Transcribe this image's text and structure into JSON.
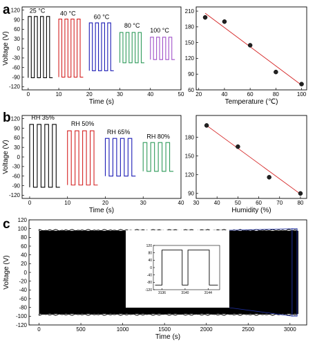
{
  "panels": {
    "a": "a",
    "b": "b",
    "c": "c"
  },
  "colors": {
    "black": "#000000",
    "red": "#d42020",
    "blue": "#1a1ab5",
    "green": "#2e9a5a",
    "purple": "#a050c8",
    "fit": "#d42020",
    "zoom_box": "#2030a0"
  },
  "chart_data": [
    {
      "id": "a-left",
      "type": "line",
      "xlabel": "Time (s)",
      "ylabel": "Voltage (V)",
      "xlim": [
        -2,
        50
      ],
      "ylim": [
        -130,
        130
      ],
      "xticks": [
        0,
        10,
        20,
        30,
        40,
        50
      ],
      "yticks": [
        -120,
        -90,
        -60,
        -30,
        0,
        30,
        60,
        90,
        120
      ],
      "series": [
        {
          "name": "25 °C",
          "label": "25 °C",
          "color": "#000000",
          "x_start": 0,
          "x_end": 8,
          "high": 100,
          "low": -92,
          "pulses": 4
        },
        {
          "name": "40 °C",
          "label": "40 °C",
          "color": "#d42020",
          "x_start": 10,
          "x_end": 18,
          "high": 92,
          "low": -90,
          "pulses": 4
        },
        {
          "name": "60 °C",
          "label": "60 °C",
          "color": "#1a1ab5",
          "x_start": 20,
          "x_end": 28,
          "high": 80,
          "low": -70,
          "pulses": 4
        },
        {
          "name": "80 °C",
          "label": "80 °C",
          "color": "#2e9a5a",
          "x_start": 30,
          "x_end": 38,
          "high": 50,
          "low": -45,
          "pulses": 4
        },
        {
          "name": "100 °C",
          "label": "100 °C",
          "color": "#a050c8",
          "x_start": 40,
          "x_end": 48,
          "high": 35,
          "low": -35,
          "pulses": 4
        }
      ]
    },
    {
      "id": "a-right",
      "type": "scatter",
      "xlabel": "Temperature (℃)",
      "ylabel": "",
      "xlim": [
        18,
        104
      ],
      "ylim": [
        60,
        218
      ],
      "xticks": [
        20,
        40,
        60,
        80,
        100
      ],
      "yticks": [
        60,
        90,
        120,
        150,
        180,
        210
      ],
      "points": {
        "x": [
          25,
          40,
          60,
          80,
          100
        ],
        "y": [
          198,
          190,
          145,
          94,
          71
        ]
      },
      "fit": {
        "x": [
          25,
          100
        ],
        "y": [
          206,
          69
        ]
      }
    },
    {
      "id": "b-left",
      "type": "line",
      "xlabel": "Time (s)",
      "ylabel": "Voltage (V)",
      "xlim": [
        -2,
        40
      ],
      "ylim": [
        -130,
        130
      ],
      "xticks": [
        0,
        10,
        20,
        30,
        40
      ],
      "yticks": [
        -120,
        -90,
        -60,
        -30,
        0,
        30,
        60,
        90,
        120
      ],
      "series": [
        {
          "name": "RH 35%",
          "label": "RH 35%",
          "color": "#000000",
          "x_start": 0,
          "x_end": 8,
          "high": 102,
          "low": -95,
          "pulses": 4
        },
        {
          "name": "RH 50%",
          "label": "RH 50%",
          "color": "#d42020",
          "x_start": 10,
          "x_end": 18,
          "high": 82,
          "low": -88,
          "pulses": 4
        },
        {
          "name": "RH 65%",
          "label": "RH 65%",
          "color": "#1a1ab5",
          "x_start": 20,
          "x_end": 28,
          "high": 58,
          "low": -60,
          "pulses": 4
        },
        {
          "name": "RH 80%",
          "label": "RH 80%",
          "color": "#2e9a5a",
          "x_start": 30,
          "x_end": 38,
          "high": 45,
          "low": -45,
          "pulses": 4
        }
      ]
    },
    {
      "id": "b-right",
      "type": "scatter",
      "xlabel": "Humidity (%)",
      "ylabel": "",
      "xlim": [
        30,
        83
      ],
      "ylim": [
        82,
        215
      ],
      "xticks": [
        30,
        40,
        50,
        60,
        70,
        80
      ],
      "yticks": [
        90,
        120,
        150,
        180
      ],
      "points": {
        "x": [
          35,
          50,
          65,
          80
        ],
        "y": [
          199,
          165,
          116,
          90
        ]
      },
      "fit": {
        "x": [
          35,
          80
        ],
        "y": [
          199,
          89
        ]
      }
    },
    {
      "id": "c-main",
      "type": "area",
      "xlabel": "Time (s)",
      "ylabel": "Voltage (V)",
      "xlim": [
        -120,
        3200
      ],
      "ylim": [
        -120,
        120
      ],
      "xticks": [
        0,
        500,
        1000,
        1500,
        2000,
        2500,
        3000
      ],
      "yticks": [
        -120,
        -100,
        -80,
        -60,
        -40,
        -20,
        0,
        20,
        40,
        60,
        80,
        100,
        120
      ],
      "band": {
        "x_start": 0,
        "x_end": 3100,
        "high": 95,
        "low": -95
      }
    },
    {
      "id": "c-inset",
      "type": "line",
      "xlim": [
        3134.5,
        3146
      ],
      "ylim": [
        -120,
        120
      ],
      "xticks": [
        3136,
        3140,
        3144
      ],
      "yticks": [
        -120,
        -80,
        -40,
        0,
        40,
        80,
        120
      ],
      "transitions": [
        3136,
        3139.5,
        3140.5,
        3144.2
      ],
      "high": 95,
      "low": -95
    }
  ]
}
